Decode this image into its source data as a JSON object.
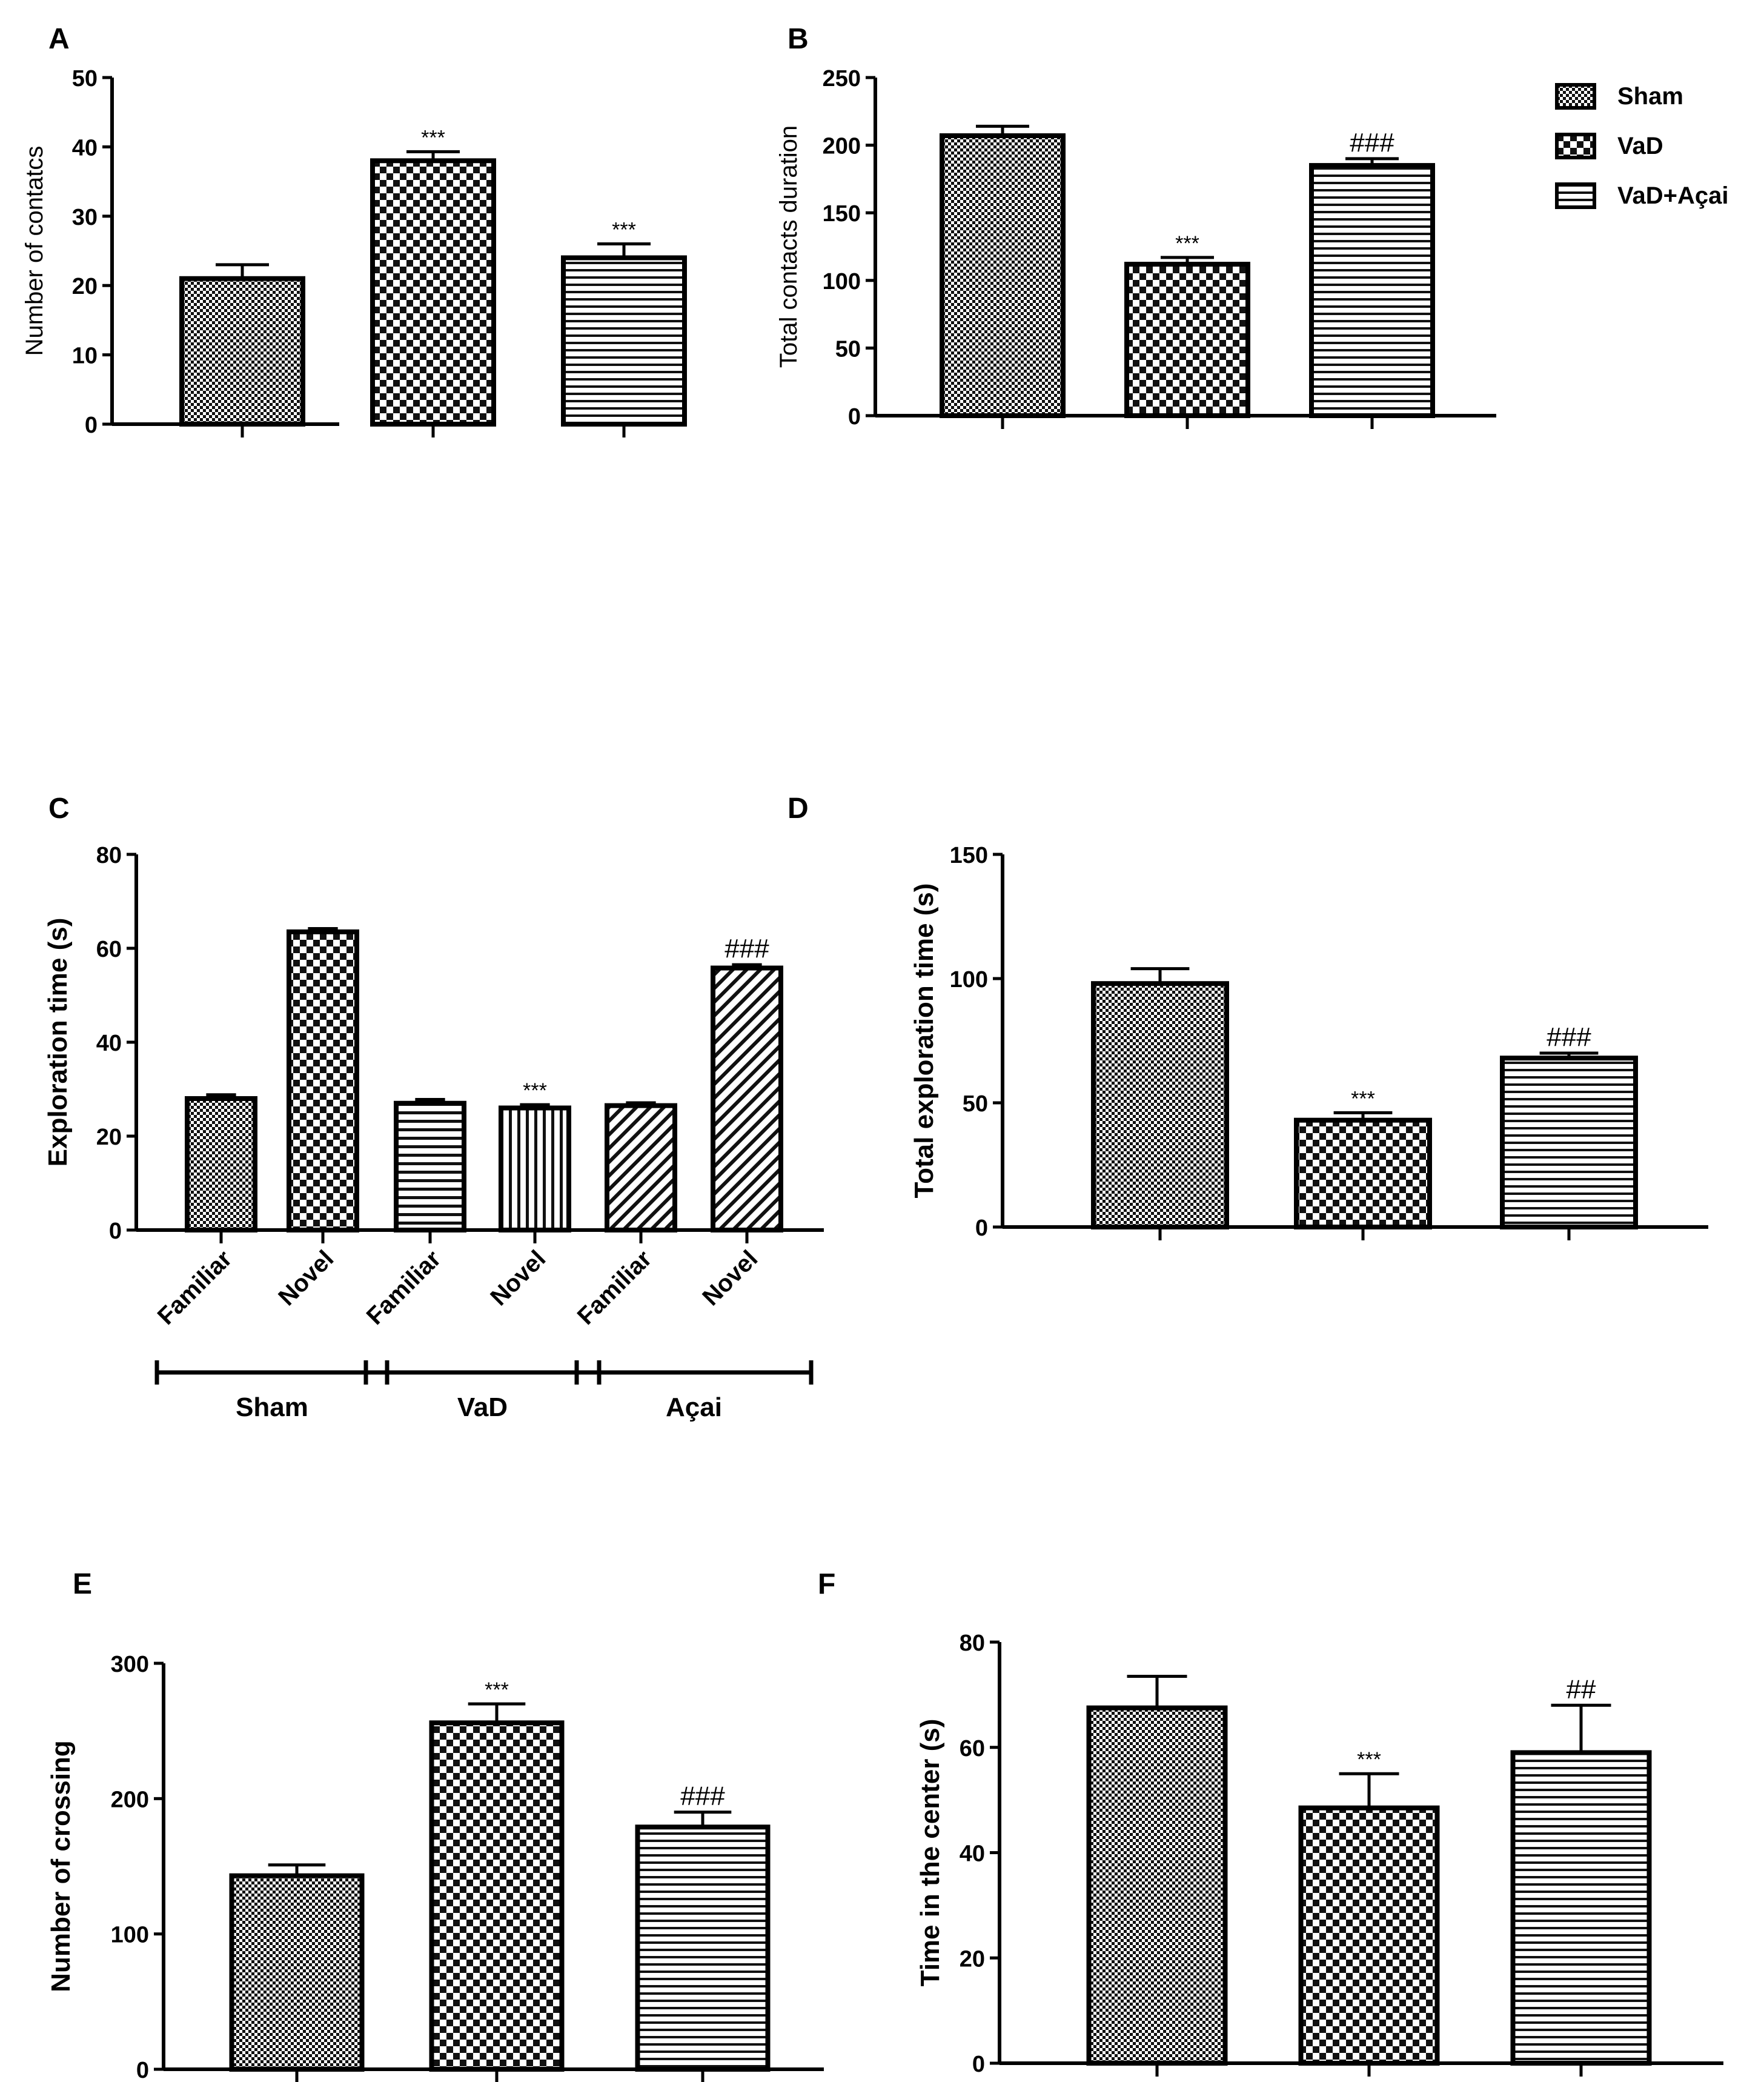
{
  "legend": {
    "entries": [
      {
        "label": "Sham",
        "pattern": "sham"
      },
      {
        "label": "VaD",
        "pattern": "vad"
      },
      {
        "label": "VaD+Açai",
        "pattern": "acai"
      }
    ]
  },
  "chart_data": [
    {
      "id": "A",
      "type": "bar",
      "panel_label": "A",
      "ylabel": "Number of contatcs",
      "ylim": [
        0,
        50
      ],
      "ticks": [
        0,
        10,
        20,
        30,
        40,
        50
      ],
      "categories": [
        "Sham",
        "VaD",
        "VaD+Açai"
      ],
      "values": [
        21,
        38,
        24
      ],
      "errors": [
        2,
        1.3,
        2
      ],
      "annotations": [
        "",
        "***",
        "***"
      ],
      "patterns": [
        "sham",
        "vad",
        "acai"
      ]
    },
    {
      "id": "B",
      "type": "bar",
      "panel_label": "B",
      "ylabel": "Total contacts duration",
      "ylim": [
        0,
        250
      ],
      "ticks": [
        0,
        50,
        100,
        150,
        200,
        250
      ],
      "categories": [
        "Sham",
        "VaD",
        "VaD+Açai"
      ],
      "values": [
        207,
        112,
        185
      ],
      "errors": [
        7,
        5,
        5
      ],
      "annotations": [
        "",
        "***",
        "###"
      ],
      "patterns": [
        "sham",
        "vad",
        "acai"
      ]
    },
    {
      "id": "C",
      "type": "bar",
      "panel_label": "C",
      "ylabel": "Exploration time (s)",
      "ylim": [
        0,
        80
      ],
      "ticks": [
        0,
        20,
        40,
        60,
        80
      ],
      "categories": [
        "Familiar",
        "Novel",
        "Familiar",
        "Novel",
        "Familiar",
        "Novel"
      ],
      "values": [
        28,
        63.5,
        27,
        26,
        26.5,
        55.8
      ],
      "errors": [
        0.8,
        0.7,
        0.8,
        0.7,
        0.6,
        0.7
      ],
      "annotations": [
        "",
        "",
        "",
        "***",
        "",
        "###"
      ],
      "patterns": [
        "sham",
        "vad",
        "hlines",
        "vlines",
        "diag",
        "diag"
      ],
      "groups": [
        {
          "label": "Sham",
          "from": 0,
          "to": 1
        },
        {
          "label": "VaD",
          "from": 2,
          "to": 3
        },
        {
          "label": "Açai",
          "from": 4,
          "to": 5
        }
      ]
    },
    {
      "id": "D",
      "type": "bar",
      "panel_label": "D",
      "ylabel": "Total exploration time (s)",
      "ylim": [
        0,
        150
      ],
      "ticks": [
        0,
        50,
        100,
        150
      ],
      "categories": [
        "Sham",
        "VaD",
        "VaD+Açai"
      ],
      "values": [
        98,
        43,
        68
      ],
      "errors": [
        6,
        3,
        2
      ],
      "annotations": [
        "",
        "***",
        "###"
      ],
      "patterns": [
        "sham",
        "vad",
        "acai"
      ]
    },
    {
      "id": "E",
      "type": "bar",
      "panel_label": "E",
      "ylabel": "Number of crossing",
      "ylim": [
        0,
        300
      ],
      "ticks": [
        0,
        100,
        200,
        300
      ],
      "categories": [
        "Sham",
        "VaD",
        "VaD+Açai"
      ],
      "values": [
        143,
        256,
        179
      ],
      "errors": [
        8,
        14,
        11
      ],
      "annotations": [
        "",
        "***",
        "###"
      ],
      "patterns": [
        "sham",
        "vad",
        "acai"
      ]
    },
    {
      "id": "F",
      "type": "bar",
      "panel_label": "F",
      "ylabel": "Time in the center (s)",
      "ylim": [
        0,
        80
      ],
      "ticks": [
        0,
        20,
        40,
        60,
        80
      ],
      "categories": [
        "Sham",
        "VaD",
        "VaD+Açai"
      ],
      "values": [
        67.5,
        48.5,
        59
      ],
      "errors": [
        6,
        6.5,
        9
      ],
      "annotations": [
        "",
        "***",
        "##"
      ],
      "patterns": [
        "sham",
        "vad",
        "acai"
      ]
    }
  ]
}
